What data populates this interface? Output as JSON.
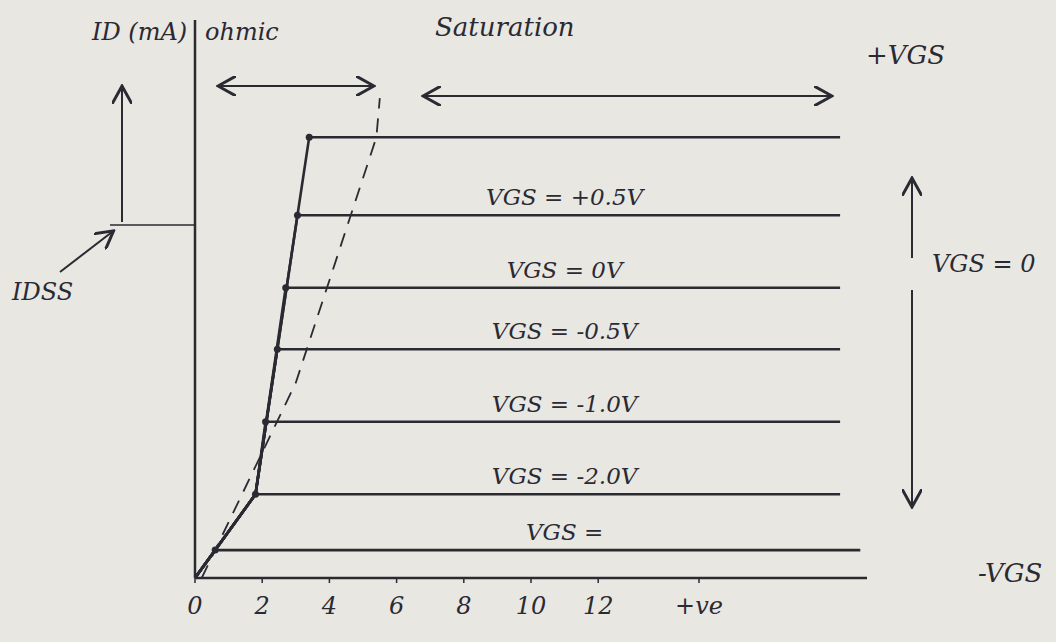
{
  "chart_data": {
    "type": "line",
    "y_label": "ID (mA)",
    "xlim": [
      0,
      20
    ],
    "ylim": [
      0,
      10
    ],
    "xticks": [
      0,
      2,
      4,
      6,
      8,
      10,
      12,
      {
        "value": 15,
        "label": "+ve"
      }
    ],
    "tick_labels": "x",
    "grid": false,
    "color": "#2a2a33",
    "annotations": [
      "ohmic",
      "Saturation",
      "IDSS",
      "+VGS",
      "VGS = 0",
      "-VGS"
    ],
    "series": [
      {
        "x": [
          0,
          1.8,
          3.4,
          19.2
        ],
        "values": [
          0,
          1.5,
          7.9,
          7.9
        ],
        "line_style": "solid"
      },
      {
        "name": "VGS = +0.5V",
        "x": [
          0,
          1.8,
          3.05,
          19.2
        ],
        "values": [
          0,
          1.5,
          6.5,
          6.5
        ],
        "line_style": "solid"
      },
      {
        "name": "VGS = 0V",
        "x": [
          0,
          1.8,
          2.7,
          19.2
        ],
        "values": [
          0,
          1.5,
          5.2,
          5.2
        ],
        "line_style": "solid"
      },
      {
        "name": "VGS = -0.5V",
        "x": [
          0,
          1.8,
          2.45,
          19.2
        ],
        "values": [
          0,
          1.5,
          4.1,
          4.1
        ],
        "line_style": "solid"
      },
      {
        "name": "VGS = -1.0V",
        "x": [
          0,
          1.8,
          2.1,
          19.2
        ],
        "values": [
          0,
          1.5,
          2.8,
          2.8
        ],
        "line_style": "solid"
      },
      {
        "name": "VGS = -2.0V",
        "x": [
          0,
          1.8,
          19.2
        ],
        "values": [
          0,
          1.5,
          1.5
        ],
        "line_style": "solid"
      },
      {
        "name": "VGS =",
        "x": [
          0,
          0.6,
          19.8
        ],
        "values": [
          0,
          0.5,
          0.5
        ],
        "line_style": "solid"
      },
      {
        "x": [
          0.2,
          3,
          5.4,
          5.5
        ],
        "values": [
          0,
          3.5,
          7.9,
          8.6
        ],
        "line_style": "dashed"
      }
    ]
  }
}
